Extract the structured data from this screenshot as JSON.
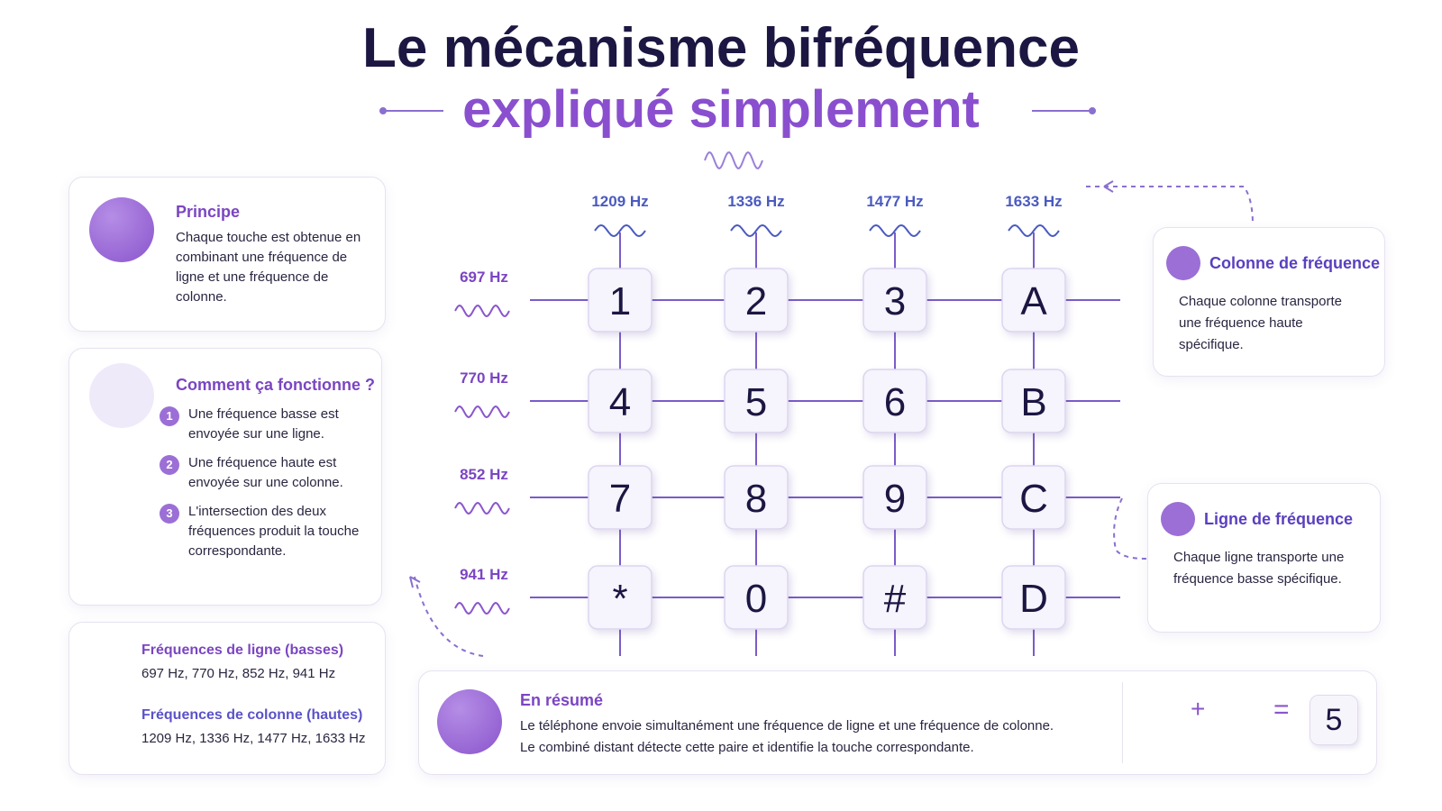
{
  "title": {
    "line1": "Le mécanisme bifréquence",
    "line2": "expliqué simplement"
  },
  "principle": {
    "heading": "Principe",
    "text": "Chaque touche est obtenue en combinant une fréquence de ligne et une fréquence de colonne."
  },
  "how": {
    "heading": "Comment ça fonctionne ?",
    "steps": [
      {
        "number": "1",
        "text": "Une fréquence basse est envoyée sur une ligne."
      },
      {
        "number": "2",
        "text": "Une fréquence haute est envoyée sur une colonne."
      },
      {
        "number": "3",
        "text": "L'intersection des deux fréquences produit la touche correspondante."
      }
    ]
  },
  "frequencies": {
    "row": {
      "title": "Fréquences de ligne (basses)",
      "values": "697 Hz, 770 Hz, 852 Hz, 941 Hz"
    },
    "column": {
      "title": "Fréquences de colonne (hautes)",
      "values": "1209 Hz, 1336 Hz, 1477 Hz, 1633 Hz"
    }
  },
  "keypad": {
    "columns": [
      "1209 Hz",
      "1336 Hz",
      "1477 Hz",
      "1633 Hz"
    ],
    "rows": [
      "697 Hz",
      "770 Hz",
      "852 Hz",
      "941 Hz"
    ],
    "keys": [
      [
        "1",
        "2",
        "3",
        "A"
      ],
      [
        "4",
        "5",
        "6",
        "B"
      ],
      [
        "7",
        "8",
        "9",
        "C"
      ],
      [
        "*",
        "0",
        "#",
        "D"
      ]
    ]
  },
  "column_callout": {
    "title": "Colonne de fréquence",
    "text": "Chaque colonne transporte une fréquence haute spécifique."
  },
  "row_callout": {
    "title": "Ligne de fréquence",
    "text": "Chaque ligne transporte une fréquence basse spécifique."
  },
  "summary": {
    "title": "En résumé",
    "text": [
      "Le téléphone envoie simultanément une fréquence de ligne et une fréquence de colonne.",
      "Le combiné distant détecte cette paire et identifie la touche correspondante."
    ],
    "plus": "+",
    "equals": "=",
    "result": "5"
  }
}
